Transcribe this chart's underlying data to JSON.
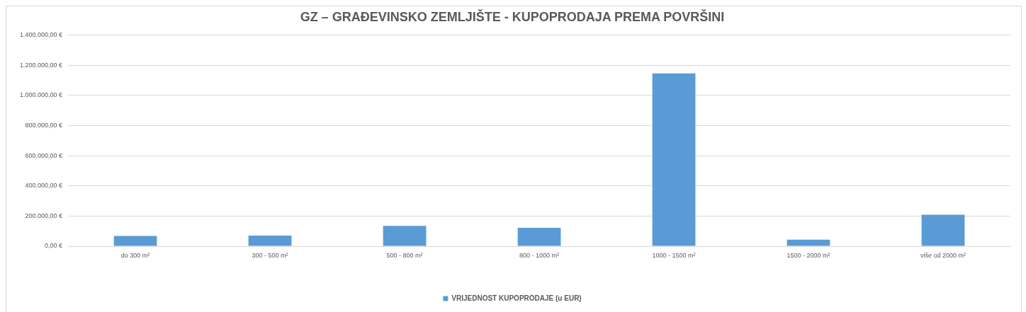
{
  "chart_data": {
    "type": "bar",
    "title": "GZ – GRAĐEVINSKO ZEMLJIŠTE - KUPOPRODAJA PREMA POVRŠINI",
    "categories": [
      "do 300 m²",
      "300 - 500 m²",
      "500 - 800 m²",
      "800 - 1000 m²",
      "1000 - 1500 m²",
      "1500 - 2000 m²",
      "više od 2000 m²"
    ],
    "series": [
      {
        "name": "VRIJEDNOST KUPOPRODAJE (u EUR)",
        "color": "#5b9bd5",
        "values": [
          68000,
          70000,
          135000,
          122000,
          1146000,
          43000,
          209000
        ]
      }
    ],
    "ylim": [
      0,
      1400000
    ],
    "yticks": [
      {
        "value": 0,
        "label": "0,00 €"
      },
      {
        "value": 200000,
        "label": "200.000,00 €"
      },
      {
        "value": 400000,
        "label": "400.000,00 €"
      },
      {
        "value": 600000,
        "label": "600.000,00 €"
      },
      {
        "value": 800000,
        "label": "800.000,00 €"
      },
      {
        "value": 1000000,
        "label": "1.000.000,00 €"
      },
      {
        "value": 1200000,
        "label": "1.200.000,00 €"
      },
      {
        "value": 1400000,
        "label": "1.400.000,00 €"
      }
    ],
    "grid": "y",
    "legend": "bottom"
  }
}
